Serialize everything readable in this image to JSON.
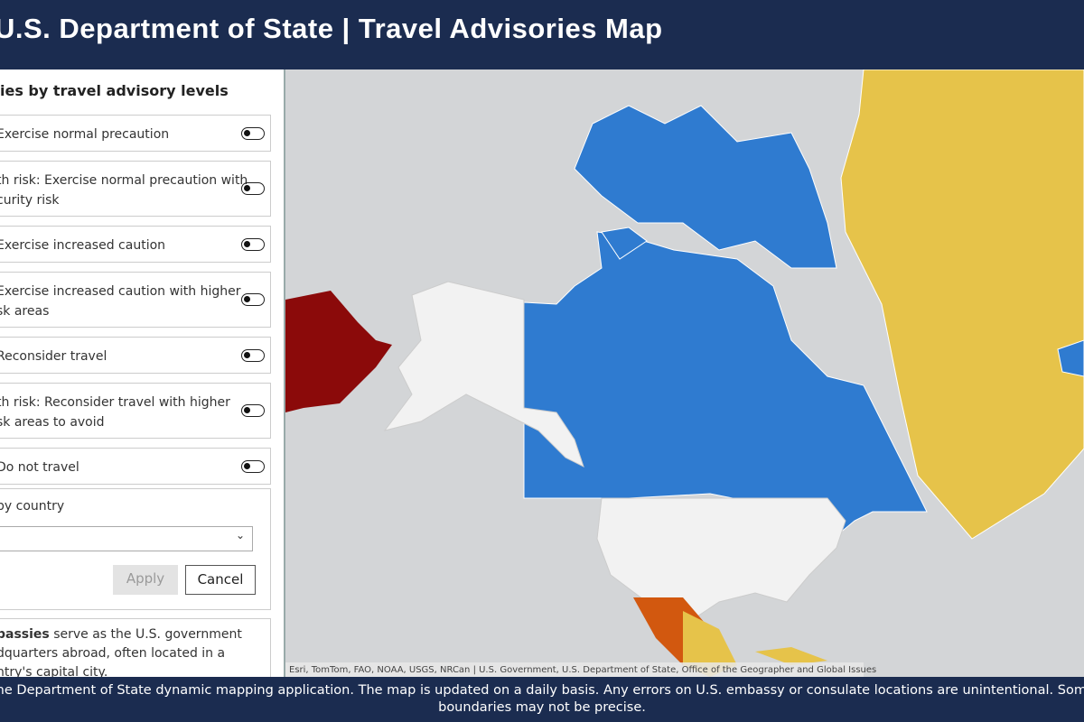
{
  "header": {
    "title": "U.S. Department of State | Travel Advisories Map"
  },
  "panel": {
    "heading": "ies by travel advisory levels",
    "toggles": [
      {
        "lines": [
          "Exercise normal precaution"
        ]
      },
      {
        "lines": [
          "th risk: Exercise normal precaution with",
          "curity risk"
        ]
      },
      {
        "lines": [
          "Exercise increased caution"
        ]
      },
      {
        "lines": [
          "Exercise increased caution with higher",
          "sk areas"
        ]
      },
      {
        "lines": [
          "Reconsider travel"
        ]
      },
      {
        "lines": [
          "th risk: Reconsider travel with higher",
          "sk areas to avoid"
        ]
      },
      {
        "lines": [
          "Do not travel"
        ]
      }
    ],
    "filter": {
      "label": "by country",
      "apply": "Apply",
      "cancel": "Cancel"
    },
    "info": {
      "bold": "bassies",
      "lines": [
        " serve as the U.S. government",
        "dquarters abroad, often located in a",
        "ntry's capital city."
      ]
    }
  },
  "map": {
    "attribution": "Esri, TomTom, FAO, NOAA, USGS, NRCan | U.S. Government, U.S. Department of State, Office of the Geographer and Global Issues"
  },
  "footer": {
    "lines": [
      "the Department of State dynamic mapping application. The map is updated on a daily basis.  Any errors on U.S. embassy or consulate locations are unintentional. Some",
      "boundaries may not be precise."
    ]
  }
}
